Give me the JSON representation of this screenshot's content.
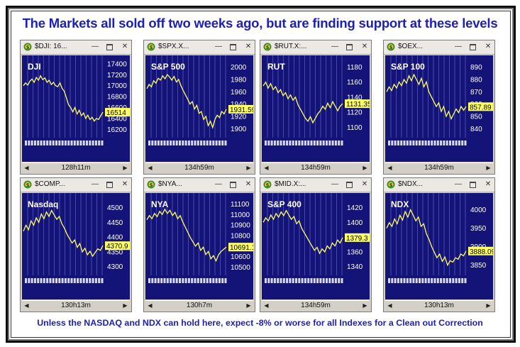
{
  "headline": "The Markets all sold off two weeks ago, but are finding support at these levels",
  "footer": "Unless the NASDAQ and NDX can hold here, expect -8% or worse for all Indexes for a Clean out Correction",
  "colors": {
    "chart_bg": "#141478",
    "price_line": "#ffff66",
    "grid": "#6a6ad8",
    "axis_text": "#ffffff",
    "headline": "#1c20b8",
    "tag_bg": "#ffff66"
  },
  "windows": [
    {
      "title": "$DJI: 16...",
      "label": "DJI",
      "yticks": [
        "17400",
        "17200",
        "17000",
        "16800",
        "16600",
        "16400",
        "16200"
      ],
      "last": "16514",
      "status": "128h11m",
      "chart_data": {
        "type": "line",
        "title": "DJI",
        "ylim": [
          16100,
          17450
        ],
        "yticks": [
          17400,
          17200,
          17000,
          16800,
          16600,
          16400,
          16200
        ],
        "last": 16514,
        "values": [
          17000,
          17050,
          17010,
          17080,
          17120,
          17060,
          17150,
          17100,
          17180,
          17110,
          17140,
          17060,
          17100,
          17020,
          17060,
          17000,
          16980,
          17050,
          16950,
          16900,
          16780,
          16650,
          16600,
          16520,
          16600,
          16480,
          16550,
          16450,
          16500,
          16400,
          16460,
          16380,
          16420,
          16350,
          16400,
          16380,
          16450,
          16514
        ]
      }
    },
    {
      "title": "$SPX.X...",
      "label": "S&P 500",
      "yticks": [
        "2000",
        "1980",
        "1960",
        "1940",
        "1920",
        "1900"
      ],
      "last": "1931.59",
      "status": "134h59m",
      "chart_data": {
        "type": "line",
        "title": "S&P 500",
        "ylim": [
          1890,
          2010
        ],
        "yticks": [
          2000,
          1980,
          1960,
          1940,
          1920,
          1900
        ],
        "last": 1931.59,
        "values": [
          1965,
          1972,
          1968,
          1978,
          1974,
          1982,
          1979,
          1986,
          1981,
          1988,
          1984,
          1979,
          1985,
          1976,
          1980,
          1970,
          1962,
          1955,
          1948,
          1940,
          1944,
          1932,
          1938,
          1925,
          1928,
          1915,
          1920,
          1905,
          1912,
          1902,
          1915,
          1922,
          1918,
          1928,
          1924,
          1931.59
        ]
      }
    },
    {
      "title": "$RUT.X:...",
      "label": "RUT",
      "yticks": [
        "1180",
        "1160",
        "1140",
        "1120",
        "1100"
      ],
      "last": "1131.35",
      "status": "134h59m",
      "chart_data": {
        "type": "line",
        "title": "RUT",
        "ylim": [
          1090,
          1188
        ],
        "yticks": [
          1180,
          1160,
          1140,
          1120,
          1100
        ],
        "last": 1131.35,
        "values": [
          1155,
          1160,
          1152,
          1158,
          1150,
          1154,
          1146,
          1150,
          1142,
          1146,
          1138,
          1143,
          1136,
          1140,
          1130,
          1124,
          1118,
          1112,
          1108,
          1114,
          1106,
          1112,
          1118,
          1122,
          1128,
          1124,
          1132,
          1126,
          1134,
          1128,
          1122,
          1128,
          1131.35
        ]
      }
    },
    {
      "title": "$OEX...",
      "label": "S&P 100",
      "yticks": [
        "890",
        "880",
        "870",
        "860",
        "850",
        "840"
      ],
      "last": "857.89",
      "status": "134h59m",
      "chart_data": {
        "type": "line",
        "title": "S&P 100",
        "ylim": [
          835,
          895
        ],
        "yticks": [
          890,
          880,
          870,
          860,
          850,
          840
        ],
        "last": 857.89,
        "values": [
          870,
          874,
          871,
          876,
          873,
          878,
          875,
          880,
          877,
          883,
          879,
          884,
          880,
          876,
          881,
          874,
          878,
          870,
          866,
          862,
          858,
          861,
          854,
          858,
          850,
          854,
          848,
          852,
          856,
          853,
          858,
          855,
          857.89
        ]
      }
    },
    {
      "title": "$COMP...",
      "label": "Nasdaq",
      "yticks": [
        "4500",
        "4450",
        "4400",
        "4350",
        "4300"
      ],
      "last": "4370.9",
      "status": "130h13m",
      "chart_data": {
        "type": "line",
        "title": "Nasdaq",
        "ylim": [
          4280,
          4530
        ],
        "yticks": [
          4500,
          4450,
          4400,
          4350,
          4300
        ],
        "last": 4370.9,
        "values": [
          4420,
          4440,
          4425,
          4455,
          4440,
          4465,
          4450,
          4478,
          4462,
          4485,
          4470,
          4490,
          4475,
          4460,
          4470,
          4445,
          4430,
          4410,
          4395,
          4380,
          4390,
          4365,
          4378,
          4350,
          4362,
          4340,
          4352,
          4335,
          4348,
          4360,
          4355,
          4370.9
        ]
      }
    },
    {
      "title": "$NYA...",
      "label": "NYA",
      "yticks": [
        "11100",
        "11000",
        "10900",
        "10800",
        "10700",
        "10600",
        "10500"
      ],
      "last": "10691.1",
      "status": "130h7m",
      "chart_data": {
        "type": "line",
        "title": "NYA",
        "ylim": [
          10450,
          11150
        ],
        "yticks": [
          11100,
          11000,
          10900,
          10800,
          10700,
          10600,
          10500
        ],
        "last": 10691.1,
        "values": [
          10950,
          10990,
          10960,
          11010,
          10980,
          11030,
          11000,
          11050,
          11010,
          11040,
          10990,
          11020,
          10960,
          10990,
          10930,
          10880,
          10830,
          10780,
          10740,
          10700,
          10730,
          10660,
          10690,
          10620,
          10650,
          10580,
          10610,
          10560,
          10620,
          10650,
          10670,
          10691.1
        ]
      }
    },
    {
      "title": "$MID.X:...",
      "label": "S&P 400",
      "yticks": [
        "1420",
        "1400",
        "1380",
        "1360",
        "1340"
      ],
      "last": "1379.3",
      "status": "134h59m",
      "chart_data": {
        "type": "line",
        "title": "S&P 400",
        "ylim": [
          1332,
          1432
        ],
        "yticks": [
          1420,
          1400,
          1380,
          1360,
          1340
        ],
        "last": 1379.3,
        "values": [
          1400,
          1406,
          1402,
          1410,
          1404,
          1412,
          1407,
          1414,
          1409,
          1416,
          1410,
          1404,
          1408,
          1398,
          1402,
          1392,
          1386,
          1380,
          1374,
          1368,
          1362,
          1366,
          1358,
          1364,
          1360,
          1368,
          1364,
          1372,
          1368,
          1376,
          1372,
          1379.3
        ]
      }
    },
    {
      "title": "$NDX...",
      "label": "NDX",
      "yticks": [
        "4000",
        "3950",
        "3900",
        "3850"
      ],
      "last": "3888.09",
      "status": "130h13m",
      "chart_data": {
        "type": "line",
        "title": "NDX",
        "ylim": [
          3830,
          4030
        ],
        "yticks": [
          4000,
          3950,
          3900,
          3850
        ],
        "last": 3888.09,
        "values": [
          3950,
          3965,
          3955,
          3975,
          3962,
          3985,
          3972,
          3995,
          3980,
          4000,
          3986,
          3970,
          3980,
          3955,
          3962,
          3935,
          3920,
          3900,
          3885,
          3870,
          3880,
          3860,
          3872,
          3850,
          3862,
          3858,
          3870,
          3866,
          3880,
          3875,
          3888.09
        ]
      }
    }
  ]
}
